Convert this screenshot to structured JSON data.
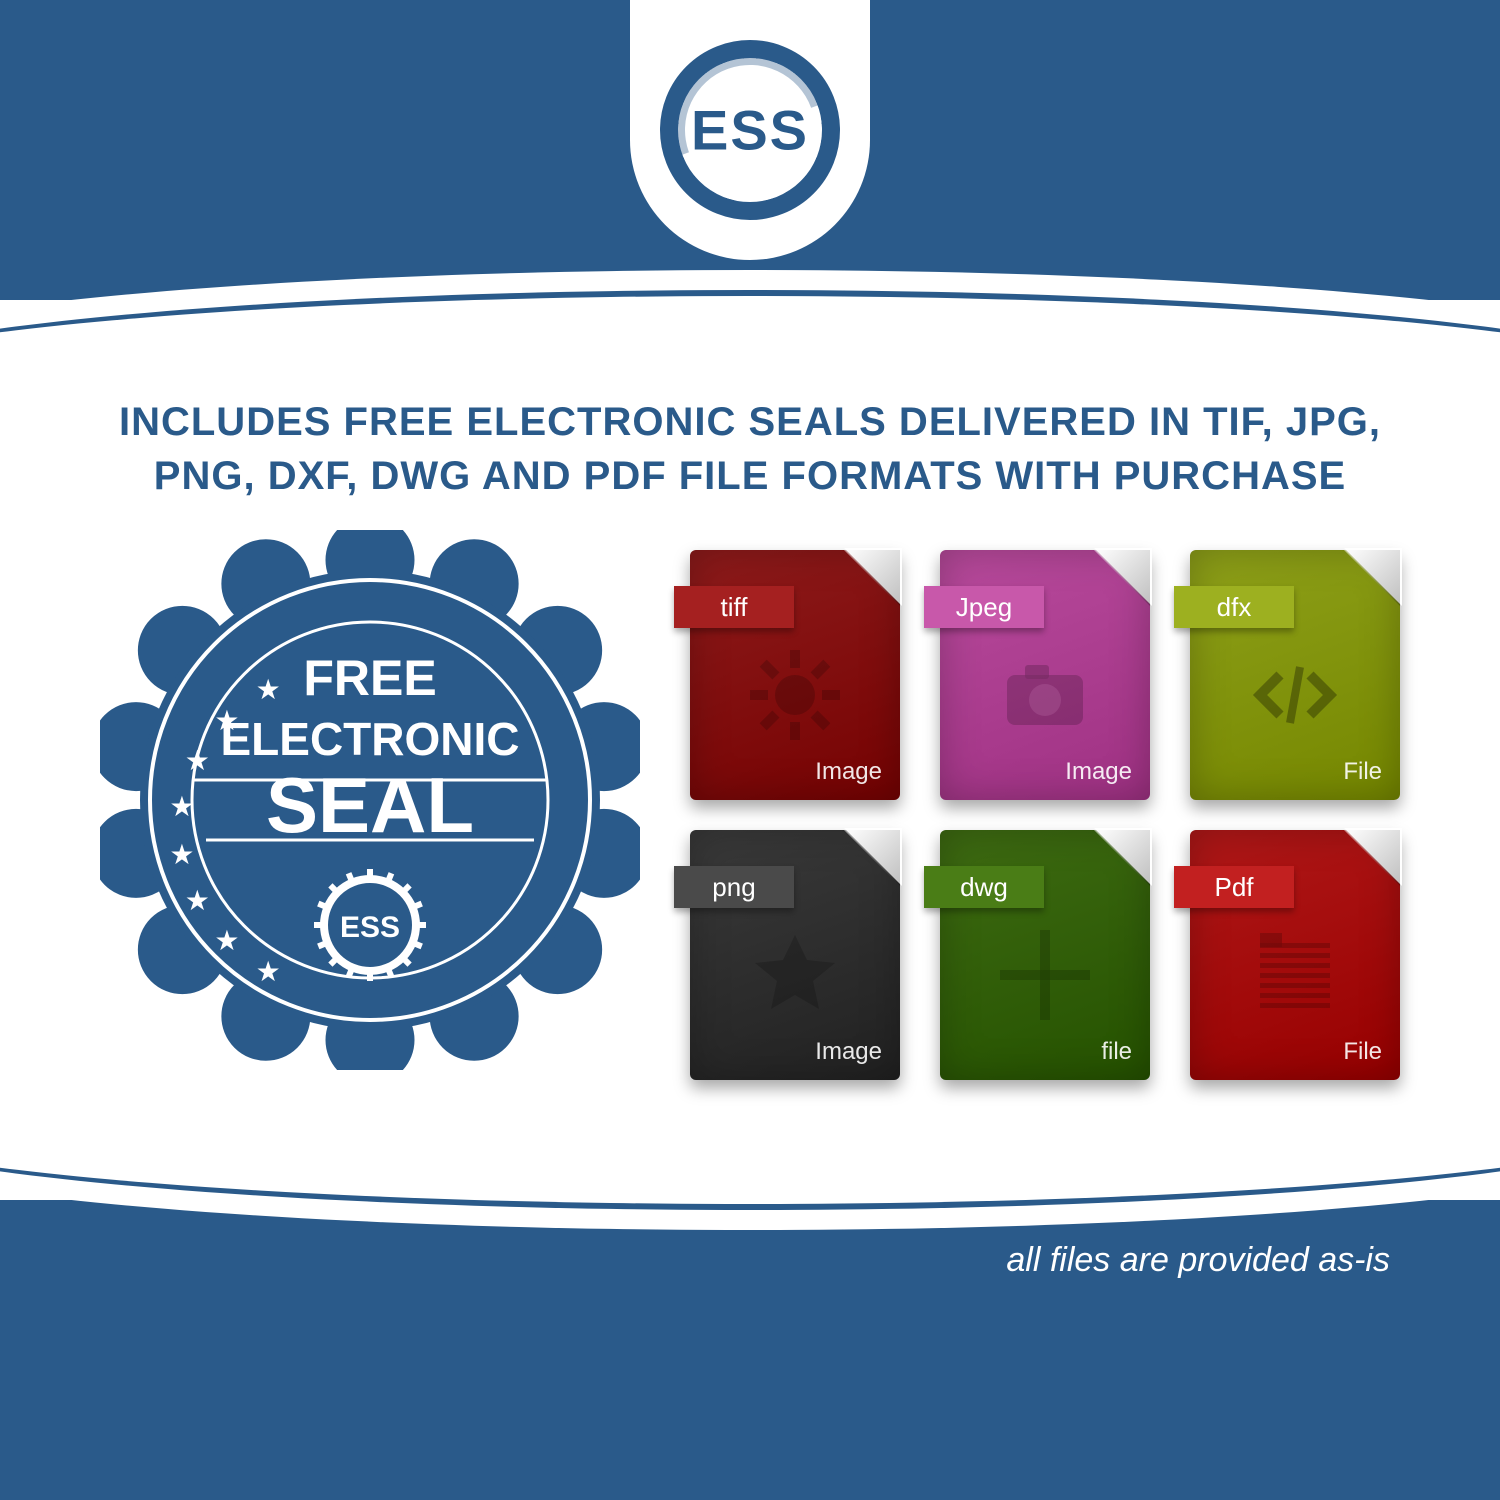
{
  "colors": {
    "brand": "#2a5a8a",
    "white": "#ffffff"
  },
  "logo": {
    "text": "ESS"
  },
  "headline": "INCLUDES FREE ELECTRONIC SEALS DELIVERED IN TIF, JPG, PNG, DXF, DWG AND PDF FILE FORMATS WITH PURCHASE",
  "seal": {
    "line1": "FREE",
    "line2": "ELECTRONIC",
    "line3": "SEAL",
    "center_text": "ESS",
    "bg_color": "#2a5a8a",
    "text_color": "#ffffff",
    "star_count": 8
  },
  "files": [
    {
      "label": "tiff",
      "caption": "Image",
      "bg": "#8e1b1b",
      "band": "#a52020",
      "motif": "gear"
    },
    {
      "label": "Jpeg",
      "caption": "Image",
      "bg": "#b84a9c",
      "band": "#c858aa",
      "motif": "camera"
    },
    {
      "label": "dfx",
      "caption": "File",
      "bg": "#8ea019",
      "band": "#9db020",
      "motif": "code"
    },
    {
      "label": "png",
      "caption": "Image",
      "bg": "#3a3a3a",
      "band": "#4a4a4a",
      "motif": "burst"
    },
    {
      "label": "dwg",
      "caption": "file",
      "bg": "#3e6b12",
      "band": "#4a7d16",
      "motif": "cross"
    },
    {
      "label": "Pdf",
      "caption": "File",
      "bg": "#b01818",
      "band": "#c22020",
      "motif": "doc"
    }
  ],
  "disclaimer": "all files are provided as-is"
}
